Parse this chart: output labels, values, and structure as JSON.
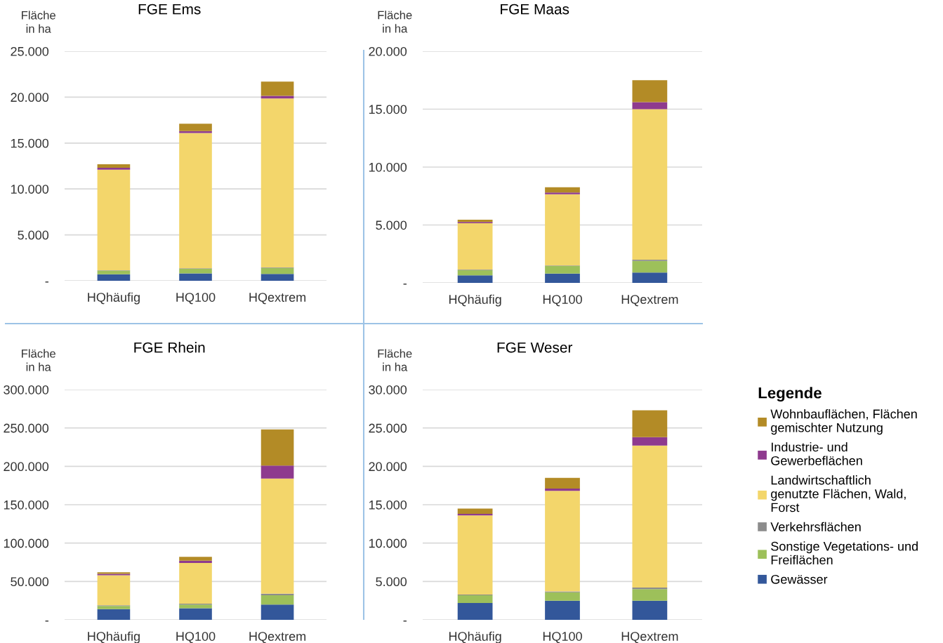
{
  "chart_data": [
    {
      "type": "bar",
      "title": "FGE Ems",
      "ylabel": "Fläche\nin ha",
      "stacked": true,
      "grid": "y",
      "legend": "right",
      "legend_title": "Legende",
      "categories": [
        "HQhäufig",
        "HQ100",
        "HQextrem"
      ],
      "ylim": [
        0,
        25000
      ],
      "yticks": [
        {
          "value": 0,
          "label": "-"
        },
        {
          "value": 5000,
          "label": "5.000"
        },
        {
          "value": 10000,
          "label": "10.000"
        },
        {
          "value": 15000,
          "label": "15.000"
        },
        {
          "value": 20000,
          "label": "20.000"
        },
        {
          "value": 25000,
          "label": "25.000"
        }
      ],
      "series": [
        {
          "name": "Gewässer",
          "color": "#33579a",
          "values": [
            700,
            800,
            750
          ]
        },
        {
          "name": "Sonstige Vegetations- und Freiflächen",
          "color": "#9dc05a",
          "values": [
            400,
            500,
            650
          ]
        },
        {
          "name": "Verkehrsflächen",
          "color": "#8c8c8c",
          "values": [
            50,
            50,
            50
          ]
        },
        {
          "name": "Landwirtschaftlich genutzte Flächen, Wald, Forst",
          "color": "#f3d66b",
          "values": [
            10950,
            14750,
            18400
          ]
        },
        {
          "name": "Industrie- und Gewerbeflächen",
          "color": "#8e3a8e",
          "values": [
            200,
            200,
            300
          ]
        },
        {
          "name": "Wohnbauflächen, Flächen gemischter Nutzung",
          "color": "#b38b26",
          "values": [
            400,
            800,
            1550
          ]
        }
      ]
    },
    {
      "type": "bar",
      "title": "FGE Maas",
      "ylabel": "Fläche\nin ha",
      "stacked": true,
      "grid": "y",
      "categories": [
        "HQhäufig",
        "HQ100",
        "HQextrem"
      ],
      "ylim": [
        0,
        20000
      ],
      "yticks": [
        {
          "value": 0,
          "label": "-"
        },
        {
          "value": 5000,
          "label": "5.000"
        },
        {
          "value": 10000,
          "label": "10.000"
        },
        {
          "value": 15000,
          "label": "15.000"
        },
        {
          "value": 20000,
          "label": "20.000"
        }
      ],
      "series": [
        {
          "color": "#33579a",
          "values": [
            650,
            800,
            900
          ]
        },
        {
          "color": "#9dc05a",
          "values": [
            450,
            650,
            1000
          ]
        },
        {
          "color": "#8c8c8c",
          "values": [
            50,
            50,
            100
          ]
        },
        {
          "color": "#f3d66b",
          "values": [
            4000,
            6150,
            13000
          ]
        },
        {
          "color": "#8e3a8e",
          "values": [
            100,
            150,
            600
          ]
        },
        {
          "color": "#b38b26",
          "values": [
            200,
            450,
            1900
          ]
        }
      ]
    },
    {
      "type": "bar",
      "title": "FGE Rhein",
      "ylabel": "Fläche\nin ha",
      "stacked": true,
      "grid": "y",
      "categories": [
        "HQhäufig",
        "HQ100",
        "HQextrem"
      ],
      "ylim": [
        0,
        300000
      ],
      "yticks": [
        {
          "value": 0,
          "label": "-"
        },
        {
          "value": 50000,
          "label": "50.000"
        },
        {
          "value": 100000,
          "label": "100.000"
        },
        {
          "value": 150000,
          "label": "150.000"
        },
        {
          "value": 200000,
          "label": "200.000"
        },
        {
          "value": 250000,
          "label": "250.000"
        },
        {
          "value": 300000,
          "label": "300.000"
        }
      ],
      "series": [
        {
          "color": "#33579a",
          "values": [
            14000,
            15000,
            20000
          ]
        },
        {
          "color": "#9dc05a",
          "values": [
            4000,
            5000,
            12000
          ]
        },
        {
          "color": "#8c8c8c",
          "values": [
            1000,
            1000,
            2000
          ]
        },
        {
          "color": "#f3d66b",
          "values": [
            39000,
            53000,
            150000
          ]
        },
        {
          "color": "#8e3a8e",
          "values": [
            2000,
            3000,
            17000
          ]
        },
        {
          "color": "#b38b26",
          "values": [
            2000,
            5000,
            47000
          ]
        }
      ]
    },
    {
      "type": "bar",
      "title": "FGE Weser",
      "ylabel": "Fläche\nin ha",
      "stacked": true,
      "grid": "y",
      "categories": [
        "HQhäufig",
        "HQ100",
        "HQextrem"
      ],
      "ylim": [
        0,
        30000
      ],
      "yticks": [
        {
          "value": 0,
          "label": "-"
        },
        {
          "value": 5000,
          "label": "5.000"
        },
        {
          "value": 10000,
          "label": "10.000"
        },
        {
          "value": 15000,
          "label": "15.000"
        },
        {
          "value": 20000,
          "label": "20.000"
        },
        {
          "value": 25000,
          "label": "25.000"
        },
        {
          "value": 30000,
          "label": "30.000"
        }
      ],
      "series": [
        {
          "color": "#33579a",
          "values": [
            2200,
            2500,
            2500
          ]
        },
        {
          "color": "#9dc05a",
          "values": [
            1000,
            1100,
            1500
          ]
        },
        {
          "color": "#8c8c8c",
          "values": [
            100,
            100,
            200
          ]
        },
        {
          "color": "#f3d66b",
          "values": [
            10300,
            13100,
            18500
          ]
        },
        {
          "color": "#8e3a8e",
          "values": [
            200,
            300,
            1100
          ]
        },
        {
          "color": "#b38b26",
          "values": [
            700,
            1400,
            3500
          ]
        }
      ]
    }
  ]
}
